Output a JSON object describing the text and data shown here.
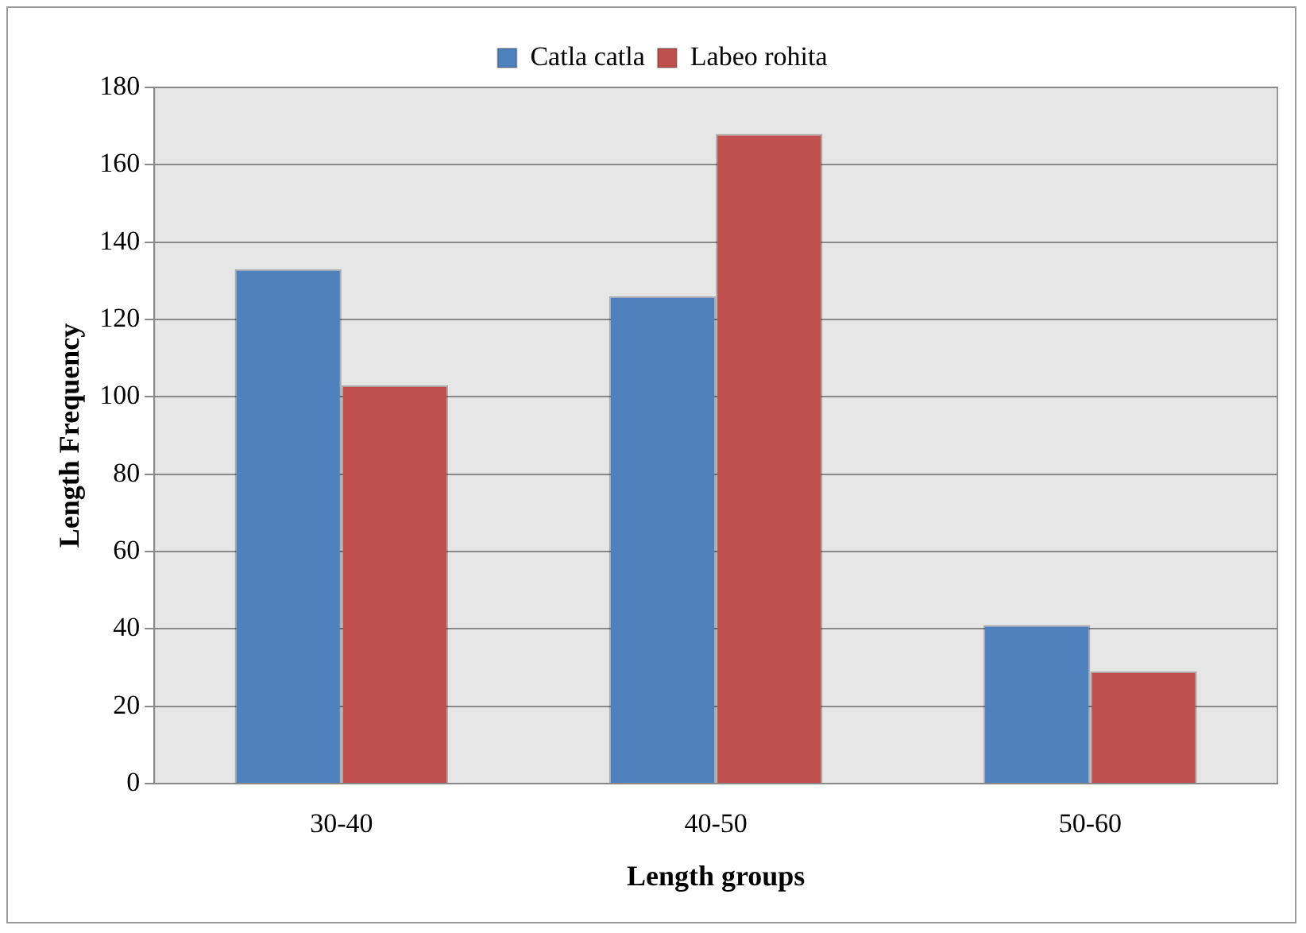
{
  "chart_data": {
    "type": "bar",
    "xlabel": "Length groups",
    "ylabel": "Length Frequency",
    "categories": [
      "30-40",
      "40-50",
      "50-60"
    ],
    "series": [
      {
        "name": "Catla catla",
        "color": "#4f81bd",
        "values": [
          133,
          126,
          41
        ]
      },
      {
        "name": "Labeo rohita",
        "color": "#c0504d",
        "values": [
          103,
          168,
          29
        ]
      }
    ],
    "ylim": [
      0,
      180
    ],
    "yticks": [
      0,
      20,
      40,
      60,
      80,
      100,
      120,
      140,
      160,
      180
    ],
    "grid": "y",
    "legend": "top"
  }
}
